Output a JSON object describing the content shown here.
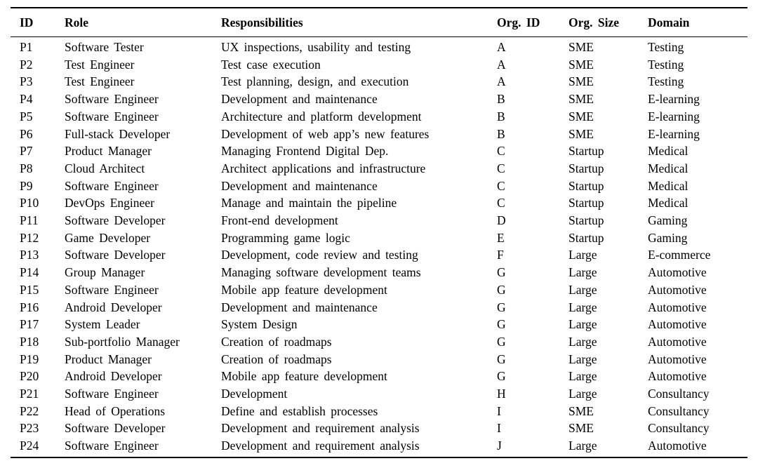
{
  "table": {
    "columns": [
      {
        "key": "id",
        "label": "ID"
      },
      {
        "key": "role",
        "label": "Role"
      },
      {
        "key": "responsibilities",
        "label": "Responsibilities"
      },
      {
        "key": "org_id",
        "label": "Org. ID"
      },
      {
        "key": "org_size",
        "label": "Org. Size"
      },
      {
        "key": "domain",
        "label": "Domain"
      }
    ],
    "rows": [
      [
        "P1",
        "Software Tester",
        "UX inspections, usability and testing",
        "A",
        "SME",
        "Testing"
      ],
      [
        "P2",
        "Test Engineer",
        "Test case execution",
        "A",
        "SME",
        "Testing"
      ],
      [
        "P3",
        "Test Engineer",
        "Test planning, design, and execution",
        "A",
        "SME",
        "Testing"
      ],
      [
        "P4",
        "Software Engineer",
        "Development and maintenance",
        "B",
        "SME",
        "E-learning"
      ],
      [
        "P5",
        "Software Engineer",
        "Architecture and platform development",
        "B",
        "SME",
        "E-learning"
      ],
      [
        "P6",
        "Full-stack Developer",
        "Development of web app’s new features",
        "B",
        "SME",
        "E-learning"
      ],
      [
        "P7",
        "Product Manager",
        "Managing Frontend Digital Dep.",
        "C",
        "Startup",
        "Medical"
      ],
      [
        "P8",
        "Cloud Architect",
        "Architect applications and infrastructure",
        "C",
        "Startup",
        "Medical"
      ],
      [
        "P9",
        "Software Engineer",
        "Development and maintenance",
        "C",
        "Startup",
        "Medical"
      ],
      [
        "P10",
        "DevOps Engineer",
        "Manage and maintain the pipeline",
        "C",
        "Startup",
        "Medical"
      ],
      [
        "P11",
        "Software Developer",
        "Front-end development",
        "D",
        "Startup",
        "Gaming"
      ],
      [
        "P12",
        "Game Developer",
        "Programming game logic",
        "E",
        "Startup",
        "Gaming"
      ],
      [
        "P13",
        "Software Developer",
        "Development, code review and testing",
        "F",
        "Large",
        "E-commerce"
      ],
      [
        "P14",
        "Group Manager",
        "Managing software development teams",
        "G",
        "Large",
        "Automotive"
      ],
      [
        "P15",
        "Software Engineer",
        "Mobile app feature development",
        "G",
        "Large",
        "Automotive"
      ],
      [
        "P16",
        "Android Developer",
        "Development and maintenance",
        "G",
        "Large",
        "Automotive"
      ],
      [
        "P17",
        "System Leader",
        "System Design",
        "G",
        "Large",
        "Automotive"
      ],
      [
        "P18",
        "Sub-portfolio Manager",
        "Creation of roadmaps",
        "G",
        "Large",
        "Automotive"
      ],
      [
        "P19",
        "Product Manager",
        "Creation of roadmaps",
        "G",
        "Large",
        "Automotive"
      ],
      [
        "P20",
        "Android Developer",
        "Mobile app feature development",
        "G",
        "Large",
        "Automotive"
      ],
      [
        "P21",
        "Software Engineer",
        "Development",
        "H",
        "Large",
        "Consultancy"
      ],
      [
        "P22",
        "Head of Operations",
        "Define and establish processes",
        "I",
        "SME",
        "Consultancy"
      ],
      [
        "P23",
        "Software Developer",
        "Development and requirement analysis",
        "I",
        "SME",
        "Consultancy"
      ],
      [
        "P24",
        "Software Engineer",
        "Development and requirement analysis",
        "J",
        "Large",
        "Automotive"
      ]
    ]
  }
}
